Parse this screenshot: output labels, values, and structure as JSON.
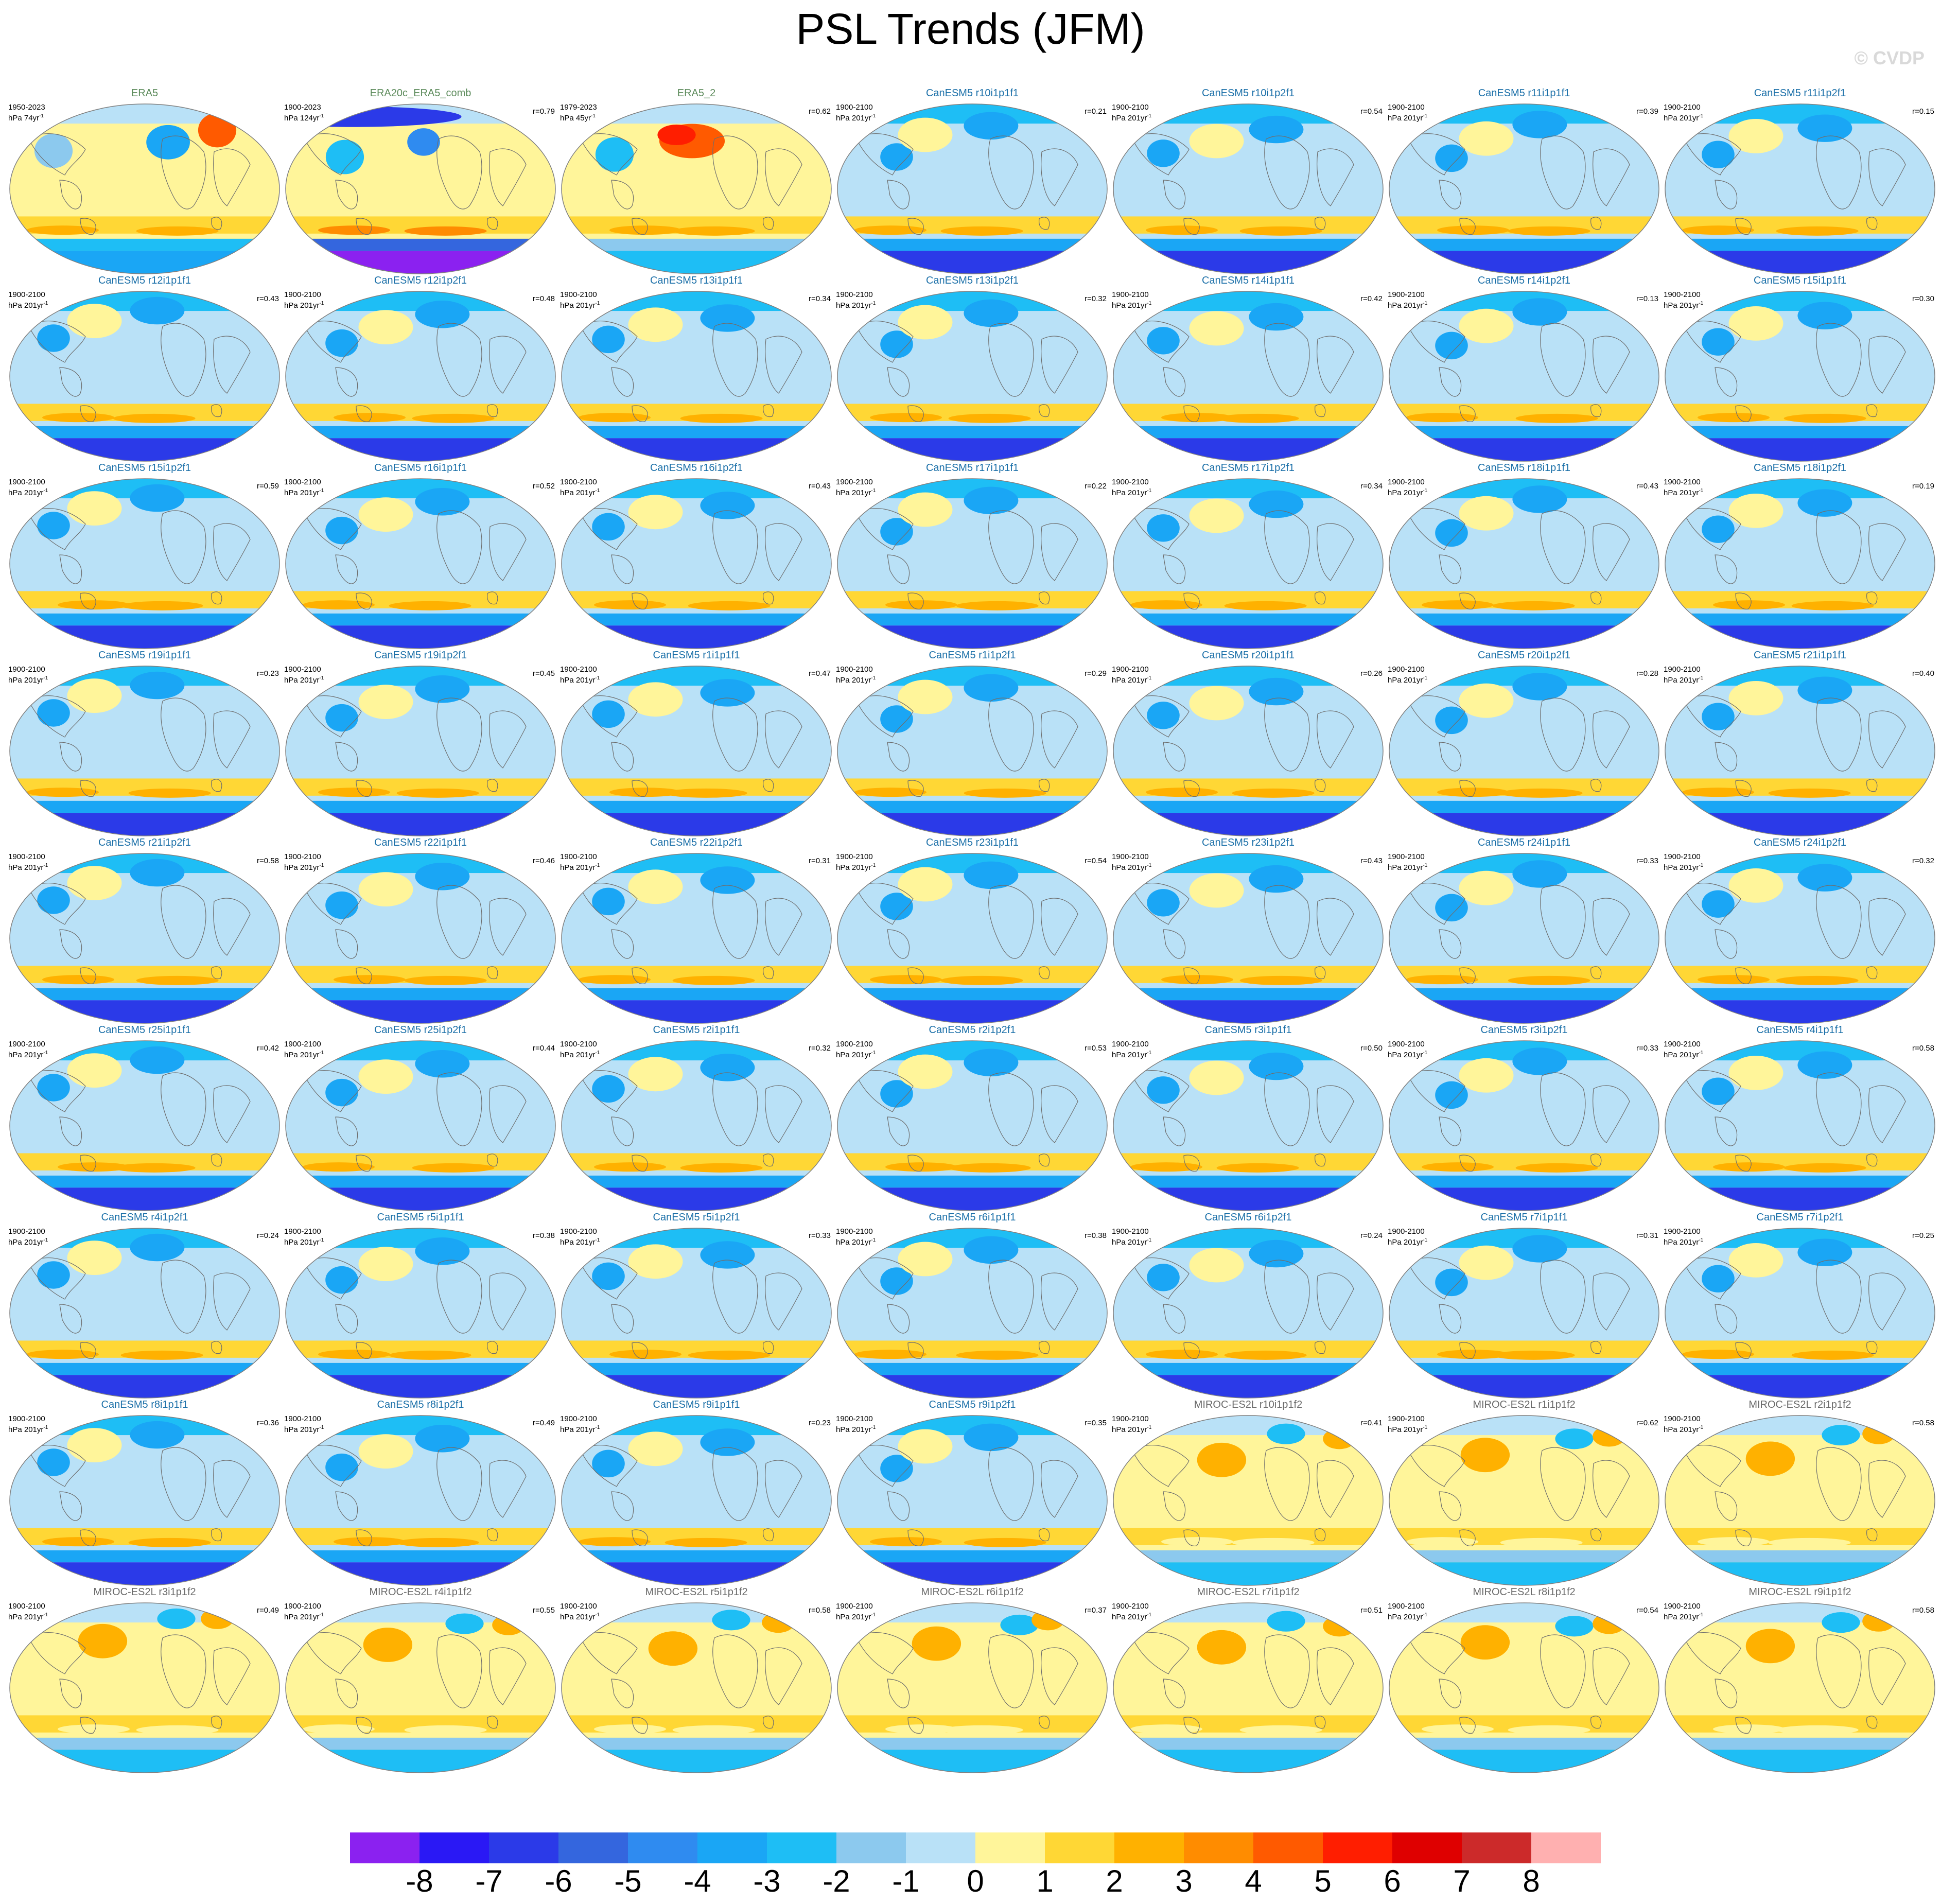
{
  "title": "PSL Trends (JFM)",
  "credit": "© CVDP",
  "colors": {
    "model_title_canesm": "#1a6fa8",
    "model_title_obs": "#5b8a5a",
    "model_title_miroc": "#6a6a6a",
    "land_outline": "#6e6e6e"
  },
  "chart_data": {
    "type": "heatmap",
    "variable": "PSL",
    "season": "JFM",
    "projection": "robinson-global",
    "colorbar": {
      "labels": [
        "-8",
        "-7",
        "-6",
        "-5",
        "-4",
        "-3",
        "-2",
        "-1",
        "0",
        "1",
        "2",
        "3",
        "4",
        "5",
        "6",
        "7",
        "8"
      ],
      "colors": [
        "#8b21f0",
        "#2a18f5",
        "#2b3ae8",
        "#3466de",
        "#2f8bf0",
        "#1aa6f5",
        "#1ebef5",
        "#8cc9ee",
        "#b9e1f7",
        "#fff59a",
        "#ffd735",
        "#ffb100",
        "#ff8c00",
        "#ff5a00",
        "#ff1e00",
        "#df0000",
        "#cc2a2a",
        "#ffb0b0"
      ]
    },
    "panels": [
      {
        "name": "ERA5",
        "years": "1950-2023",
        "units": "hPa 74yr",
        "r": "",
        "style": "obs"
      },
      {
        "name": "ERA20c_ERA5_comb",
        "years": "1900-2023",
        "units": "hPa 124yr",
        "r": "r=0.79",
        "style": "obs20"
      },
      {
        "name": "ERA5_2",
        "years": "1979-2023",
        "units": "hPa 45yr",
        "r": "r=0.62",
        "style": "obs2"
      },
      {
        "name": "CanESM5 r10i1p1f1",
        "years": "1900-2100",
        "units": "hPa 201yr",
        "r": "r=0.21",
        "style": "can"
      },
      {
        "name": "CanESM5 r10i1p2f1",
        "years": "1900-2100",
        "units": "hPa 201yr",
        "r": "r=0.54",
        "style": "can"
      },
      {
        "name": "CanESM5 r11i1p1f1",
        "years": "1900-2100",
        "units": "hPa 201yr",
        "r": "r=0.39",
        "style": "can"
      },
      {
        "name": "CanESM5 r11i1p2f1",
        "years": "1900-2100",
        "units": "hPa 201yr",
        "r": "r=0.15",
        "style": "can"
      },
      {
        "name": "CanESM5 r12i1p1f1",
        "years": "1900-2100",
        "units": "hPa 201yr",
        "r": "r=0.43",
        "style": "can"
      },
      {
        "name": "CanESM5 r12i1p2f1",
        "years": "1900-2100",
        "units": "hPa 201yr",
        "r": "r=0.48",
        "style": "can"
      },
      {
        "name": "CanESM5 r13i1p1f1",
        "years": "1900-2100",
        "units": "hPa 201yr",
        "r": "r=0.34",
        "style": "can"
      },
      {
        "name": "CanESM5 r13i1p2f1",
        "years": "1900-2100",
        "units": "hPa 201yr",
        "r": "r=0.32",
        "style": "can"
      },
      {
        "name": "CanESM5 r14i1p1f1",
        "years": "1900-2100",
        "units": "hPa 201yr",
        "r": "r=0.42",
        "style": "can"
      },
      {
        "name": "CanESM5 r14i1p2f1",
        "years": "1900-2100",
        "units": "hPa 201yr",
        "r": "r=0.13",
        "style": "can"
      },
      {
        "name": "CanESM5 r15i1p1f1",
        "years": "1900-2100",
        "units": "hPa 201yr",
        "r": "r=0.30",
        "style": "can"
      },
      {
        "name": "CanESM5 r15i1p2f1",
        "years": "1900-2100",
        "units": "hPa 201yr",
        "r": "r=0.59",
        "style": "can"
      },
      {
        "name": "CanESM5 r16i1p1f1",
        "years": "1900-2100",
        "units": "hPa 201yr",
        "r": "r=0.52",
        "style": "can"
      },
      {
        "name": "CanESM5 r16i1p2f1",
        "years": "1900-2100",
        "units": "hPa 201yr",
        "r": "r=0.43",
        "style": "can"
      },
      {
        "name": "CanESM5 r17i1p1f1",
        "years": "1900-2100",
        "units": "hPa 201yr",
        "r": "r=0.22",
        "style": "can"
      },
      {
        "name": "CanESM5 r17i1p2f1",
        "years": "1900-2100",
        "units": "hPa 201yr",
        "r": "r=0.34",
        "style": "can"
      },
      {
        "name": "CanESM5 r18i1p1f1",
        "years": "1900-2100",
        "units": "hPa 201yr",
        "r": "r=0.43",
        "style": "can"
      },
      {
        "name": "CanESM5 r18i1p2f1",
        "years": "1900-2100",
        "units": "hPa 201yr",
        "r": "r=0.19",
        "style": "can"
      },
      {
        "name": "CanESM5 r19i1p1f1",
        "years": "1900-2100",
        "units": "hPa 201yr",
        "r": "r=0.23",
        "style": "can"
      },
      {
        "name": "CanESM5 r19i1p2f1",
        "years": "1900-2100",
        "units": "hPa 201yr",
        "r": "r=0.45",
        "style": "can"
      },
      {
        "name": "CanESM5 r1i1p1f1",
        "years": "1900-2100",
        "units": "hPa 201yr",
        "r": "r=0.47",
        "style": "can"
      },
      {
        "name": "CanESM5 r1i1p2f1",
        "years": "1900-2100",
        "units": "hPa 201yr",
        "r": "r=0.29",
        "style": "can"
      },
      {
        "name": "CanESM5 r20i1p1f1",
        "years": "1900-2100",
        "units": "hPa 201yr",
        "r": "r=0.26",
        "style": "can"
      },
      {
        "name": "CanESM5 r20i1p2f1",
        "years": "1900-2100",
        "units": "hPa 201yr",
        "r": "r=0.28",
        "style": "can"
      },
      {
        "name": "CanESM5 r21i1p1f1",
        "years": "1900-2100",
        "units": "hPa 201yr",
        "r": "r=0.40",
        "style": "can"
      },
      {
        "name": "CanESM5 r21i1p2f1",
        "years": "1900-2100",
        "units": "hPa 201yr",
        "r": "r=0.58",
        "style": "can"
      },
      {
        "name": "CanESM5 r22i1p1f1",
        "years": "1900-2100",
        "units": "hPa 201yr",
        "r": "r=0.46",
        "style": "can"
      },
      {
        "name": "CanESM5 r22i1p2f1",
        "years": "1900-2100",
        "units": "hPa 201yr",
        "r": "r=0.31",
        "style": "can"
      },
      {
        "name": "CanESM5 r23i1p1f1",
        "years": "1900-2100",
        "units": "hPa 201yr",
        "r": "r=0.54",
        "style": "can"
      },
      {
        "name": "CanESM5 r23i1p2f1",
        "years": "1900-2100",
        "units": "hPa 201yr",
        "r": "r=0.43",
        "style": "can"
      },
      {
        "name": "CanESM5 r24i1p1f1",
        "years": "1900-2100",
        "units": "hPa 201yr",
        "r": "r=0.33",
        "style": "can"
      },
      {
        "name": "CanESM5 r24i1p2f1",
        "years": "1900-2100",
        "units": "hPa 201yr",
        "r": "r=0.32",
        "style": "can"
      },
      {
        "name": "CanESM5 r25i1p1f1",
        "years": "1900-2100",
        "units": "hPa 201yr",
        "r": "r=0.42",
        "style": "can"
      },
      {
        "name": "CanESM5 r25i1p2f1",
        "years": "1900-2100",
        "units": "hPa 201yr",
        "r": "r=0.44",
        "style": "can"
      },
      {
        "name": "CanESM5 r2i1p1f1",
        "years": "1900-2100",
        "units": "hPa 201yr",
        "r": "r=0.32",
        "style": "can"
      },
      {
        "name": "CanESM5 r2i1p2f1",
        "years": "1900-2100",
        "units": "hPa 201yr",
        "r": "r=0.53",
        "style": "can"
      },
      {
        "name": "CanESM5 r3i1p1f1",
        "years": "1900-2100",
        "units": "hPa 201yr",
        "r": "r=0.50",
        "style": "can"
      },
      {
        "name": "CanESM5 r3i1p2f1",
        "years": "1900-2100",
        "units": "hPa 201yr",
        "r": "r=0.33",
        "style": "can"
      },
      {
        "name": "CanESM5 r4i1p1f1",
        "years": "1900-2100",
        "units": "hPa 201yr",
        "r": "r=0.58",
        "style": "can"
      },
      {
        "name": "CanESM5 r4i1p2f1",
        "years": "1900-2100",
        "units": "hPa 201yr",
        "r": "r=0.24",
        "style": "can"
      },
      {
        "name": "CanESM5 r5i1p1f1",
        "years": "1900-2100",
        "units": "hPa 201yr",
        "r": "r=0.38",
        "style": "can"
      },
      {
        "name": "CanESM5 r5i1p2f1",
        "years": "1900-2100",
        "units": "hPa 201yr",
        "r": "r=0.33",
        "style": "can"
      },
      {
        "name": "CanESM5 r6i1p1f1",
        "years": "1900-2100",
        "units": "hPa 201yr",
        "r": "r=0.38",
        "style": "can"
      },
      {
        "name": "CanESM5 r6i1p2f1",
        "years": "1900-2100",
        "units": "hPa 201yr",
        "r": "r=0.24",
        "style": "can"
      },
      {
        "name": "CanESM5 r7i1p1f1",
        "years": "1900-2100",
        "units": "hPa 201yr",
        "r": "r=0.31",
        "style": "can"
      },
      {
        "name": "CanESM5 r7i1p2f1",
        "years": "1900-2100",
        "units": "hPa 201yr",
        "r": "r=0.25",
        "style": "can"
      },
      {
        "name": "CanESM5 r8i1p1f1",
        "years": "1900-2100",
        "units": "hPa 201yr",
        "r": "r=0.36",
        "style": "can"
      },
      {
        "name": "CanESM5 r8i1p2f1",
        "years": "1900-2100",
        "units": "hPa 201yr",
        "r": "r=0.49",
        "style": "can"
      },
      {
        "name": "CanESM5 r9i1p1f1",
        "years": "1900-2100",
        "units": "hPa 201yr",
        "r": "r=0.23",
        "style": "can"
      },
      {
        "name": "CanESM5 r9i1p2f1",
        "years": "1900-2100",
        "units": "hPa 201yr",
        "r": "r=0.35",
        "style": "can"
      },
      {
        "name": "MIROC-ES2L r10i1p1f2",
        "years": "1900-2100",
        "units": "hPa 201yr",
        "r": "r=0.41",
        "style": "miroc"
      },
      {
        "name": "MIROC-ES2L r1i1p1f2",
        "years": "1900-2100",
        "units": "hPa 201yr",
        "r": "r=0.62",
        "style": "miroc"
      },
      {
        "name": "MIROC-ES2L r2i1p1f2",
        "years": "1900-2100",
        "units": "hPa 201yr",
        "r": "r=0.58",
        "style": "miroc"
      },
      {
        "name": "MIROC-ES2L r3i1p1f2",
        "years": "1900-2100",
        "units": "hPa 201yr",
        "r": "r=0.49",
        "style": "miroc"
      },
      {
        "name": "MIROC-ES2L r4i1p1f2",
        "years": "1900-2100",
        "units": "hPa 201yr",
        "r": "r=0.55",
        "style": "miroc"
      },
      {
        "name": "MIROC-ES2L r5i1p1f2",
        "years": "1900-2100",
        "units": "hPa 201yr",
        "r": "r=0.58",
        "style": "miroc"
      },
      {
        "name": "MIROC-ES2L r6i1p1f2",
        "years": "1900-2100",
        "units": "hPa 201yr",
        "r": "r=0.37",
        "style": "miroc"
      },
      {
        "name": "MIROC-ES2L r7i1p1f2",
        "years": "1900-2100",
        "units": "hPa 201yr",
        "r": "r=0.51",
        "style": "miroc"
      },
      {
        "name": "MIROC-ES2L r8i1p1f2",
        "years": "1900-2100",
        "units": "hPa 201yr",
        "r": "r=0.54",
        "style": "miroc"
      },
      {
        "name": "MIROC-ES2L r9i1p1f2",
        "years": "1900-2100",
        "units": "hPa 201yr",
        "r": "r=0.58",
        "style": "miroc"
      }
    ]
  }
}
